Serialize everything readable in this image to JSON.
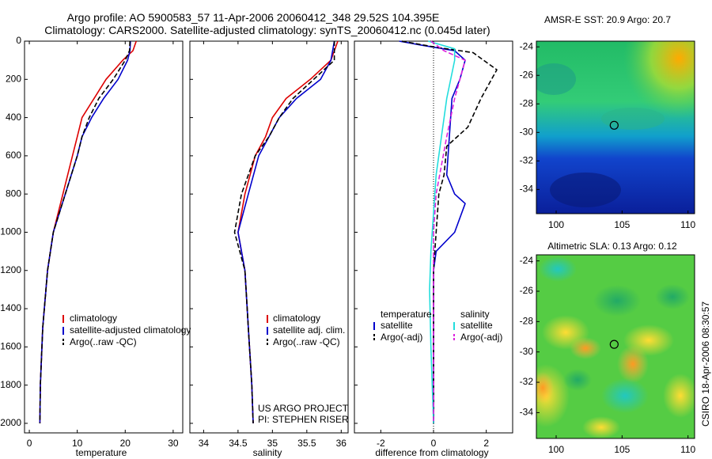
{
  "title_line1": "Argo profile: AO 5900583_57 11-Apr-2006 20060412_348 29.52S 104.395E",
  "title_line2": "Climatology: CARS2000. Satellite-adjusted climatology: synTS_20060412.nc (0.045d later)",
  "side_label": "CSIRO 18-Apr-2006 08:30:57",
  "colors": {
    "climatology": "#dd0000",
    "satellite": "#0000cc",
    "argo": "#000000",
    "sal_satellite": "#22dddd",
    "sal_argo": "#dd22dd"
  },
  "chart_data": [
    {
      "type": "line",
      "xlabel": "temperature",
      "ylim": [
        0,
        2050
      ],
      "xlim": [
        -1,
        32
      ],
      "xticks": [
        0,
        10,
        20,
        30
      ],
      "yticks": [
        0,
        200,
        400,
        600,
        800,
        1000,
        1200,
        1400,
        1600,
        1800,
        2000
      ],
      "y_reversed": true,
      "legend": [
        "climatology",
        "satellite-adjusted climatology",
        "Argo(..raw -QC)"
      ],
      "series": [
        {
          "name": "climatology",
          "color": "#dd0000",
          "dash": "",
          "x": [
            22.3,
            21.6,
            19.5,
            16.0,
            13.5,
            11.0,
            10.0,
            9.0,
            7.0,
            5.0,
            3.8,
            2.8,
            2.3,
            2.2
          ],
          "y": [
            0,
            50,
            100,
            200,
            300,
            400,
            500,
            600,
            800,
            1000,
            1200,
            1500,
            1800,
            2000
          ]
        },
        {
          "name": "satellite-adjusted climatology",
          "color": "#0000cc",
          "dash": "",
          "x": [
            21.1,
            21.0,
            20.5,
            18.5,
            15.5,
            13.0,
            11.0,
            10.0,
            7.5,
            5.0,
            3.8,
            2.8,
            2.3,
            2.2
          ],
          "y": [
            0,
            50,
            100,
            200,
            300,
            400,
            500,
            600,
            800,
            1000,
            1200,
            1500,
            1800,
            2000
          ]
        },
        {
          "name": "Argo(..raw -QC)",
          "color": "#000000",
          "dash": "6,3",
          "x": [
            21.0,
            20.9,
            20.0,
            17.5,
            14.5,
            12.5,
            11.0,
            10.0,
            7.5,
            5.0,
            3.8,
            2.8,
            2.3,
            2.2
          ],
          "y": [
            0,
            50,
            100,
            200,
            300,
            400,
            500,
            600,
            800,
            1000,
            1200,
            1500,
            1800,
            2000
          ]
        }
      ]
    },
    {
      "type": "line",
      "xlabel": "salinity",
      "ylim": [
        0,
        2050
      ],
      "xlim": [
        33.8,
        36.1
      ],
      "xticks": [
        34,
        34.5,
        35,
        35.5,
        36
      ],
      "y_reversed": true,
      "legend": [
        "climatology",
        "satellite adj. clim.",
        "Argo(..raw -QC)"
      ],
      "annotations": [
        "US ARGO PROJECT",
        "PI: STEPHEN RISER"
      ],
      "series": [
        {
          "name": "climatology",
          "color": "#dd0000",
          "dash": "",
          "x": [
            35.95,
            35.85,
            35.55,
            35.2,
            35.0,
            34.9,
            34.75,
            34.6,
            34.5,
            34.6,
            34.65,
            34.7,
            34.72
          ],
          "y": [
            0,
            100,
            200,
            300,
            400,
            500,
            600,
            800,
            1000,
            1200,
            1500,
            1800,
            2000
          ]
        },
        {
          "name": "satellite adj. clim.",
          "color": "#0000cc",
          "dash": "",
          "x": [
            35.9,
            35.85,
            35.7,
            35.35,
            35.1,
            34.95,
            34.8,
            34.65,
            34.5,
            34.6,
            34.65,
            34.7,
            34.72
          ],
          "y": [
            0,
            100,
            200,
            300,
            400,
            500,
            600,
            800,
            1000,
            1200,
            1500,
            1800,
            2000
          ]
        },
        {
          "name": "Argo(..raw -QC)",
          "color": "#000000",
          "dash": "6,3",
          "x": [
            35.9,
            35.9,
            35.6,
            35.3,
            35.1,
            34.95,
            34.75,
            34.55,
            34.45,
            34.6,
            34.65,
            34.7,
            34.72
          ],
          "y": [
            0,
            100,
            200,
            300,
            400,
            500,
            600,
            800,
            1000,
            1200,
            1500,
            1800,
            2000
          ]
        }
      ]
    },
    {
      "type": "line",
      "xlabel": "difference from climatology",
      "ylim": [
        0,
        2050
      ],
      "xlim": [
        -3,
        3
      ],
      "xticks": [
        -2,
        0,
        2
      ],
      "y_reversed": true,
      "legend_groups": [
        {
          "heading": "temperature",
          "items": [
            "satellite",
            "Argo(-adj)"
          ]
        },
        {
          "heading": "salinity",
          "items": [
            "satellite",
            "Argo(-adj)"
          ]
        }
      ],
      "series": [
        {
          "name": "temperature satellite",
          "color": "#0000cc",
          "dash": "",
          "x": [
            -1.3,
            -0.5,
            0.8,
            1.2,
            1.0,
            0.7,
            0.6,
            0.5,
            0.8,
            1.2,
            0.8,
            0.1,
            0.0,
            0.0,
            0.0
          ],
          "y": [
            0,
            20,
            50,
            100,
            200,
            300,
            500,
            700,
            800,
            850,
            1000,
            1100,
            1200,
            1500,
            2000
          ]
        },
        {
          "name": "temperature Argo(-adj)",
          "color": "#000000",
          "dash": "6,3",
          "x": [
            -1.2,
            0.0,
            1.5,
            2.4,
            1.8,
            1.3,
            0.5,
            0.4,
            0.2,
            0.1,
            0.0,
            0.0,
            0.0
          ],
          "y": [
            0,
            30,
            60,
            150,
            300,
            450,
            550,
            700,
            800,
            1000,
            1200,
            1500,
            2000
          ]
        },
        {
          "name": "salinity satellite",
          "color": "#22dddd",
          "dash": "",
          "x": [
            -0.2,
            0.8,
            0.8,
            0.5,
            0.3,
            0.1,
            0.0,
            -0.1,
            -0.15,
            -0.1,
            0.0
          ],
          "y": [
            0,
            40,
            100,
            300,
            500,
            700,
            900,
            1100,
            1300,
            1600,
            2000
          ]
        },
        {
          "name": "salinity Argo(-adj)",
          "color": "#dd22dd",
          "dash": "6,3",
          "x": [
            -0.1,
            0.4,
            1.2,
            0.8,
            0.5,
            0.1,
            0.0,
            0.0,
            0.0
          ],
          "y": [
            0,
            50,
            100,
            300,
            500,
            800,
            1000,
            1500,
            2000
          ]
        }
      ]
    },
    {
      "type": "heatmap",
      "title": "AMSR-E SST: 20.9 Argo: 20.7",
      "xlim": [
        98.5,
        110.5
      ],
      "ylim": [
        -35.7,
        -23.6
      ],
      "xticks": [
        100,
        105,
        110
      ],
      "yticks": [
        -24,
        -26,
        -28,
        -30,
        -32,
        -34
      ],
      "marker": [
        104.4,
        -29.5
      ]
    },
    {
      "type": "heatmap",
      "title": "Altimetric SLA: 0.13 Argo: 0.12",
      "xlim": [
        98.5,
        110.5
      ],
      "ylim": [
        -35.7,
        -23.6
      ],
      "xticks": [
        100,
        105,
        110
      ],
      "yticks": [
        -24,
        -26,
        -28,
        -30,
        -32,
        -34
      ],
      "marker": [
        104.4,
        -29.5
      ]
    }
  ]
}
